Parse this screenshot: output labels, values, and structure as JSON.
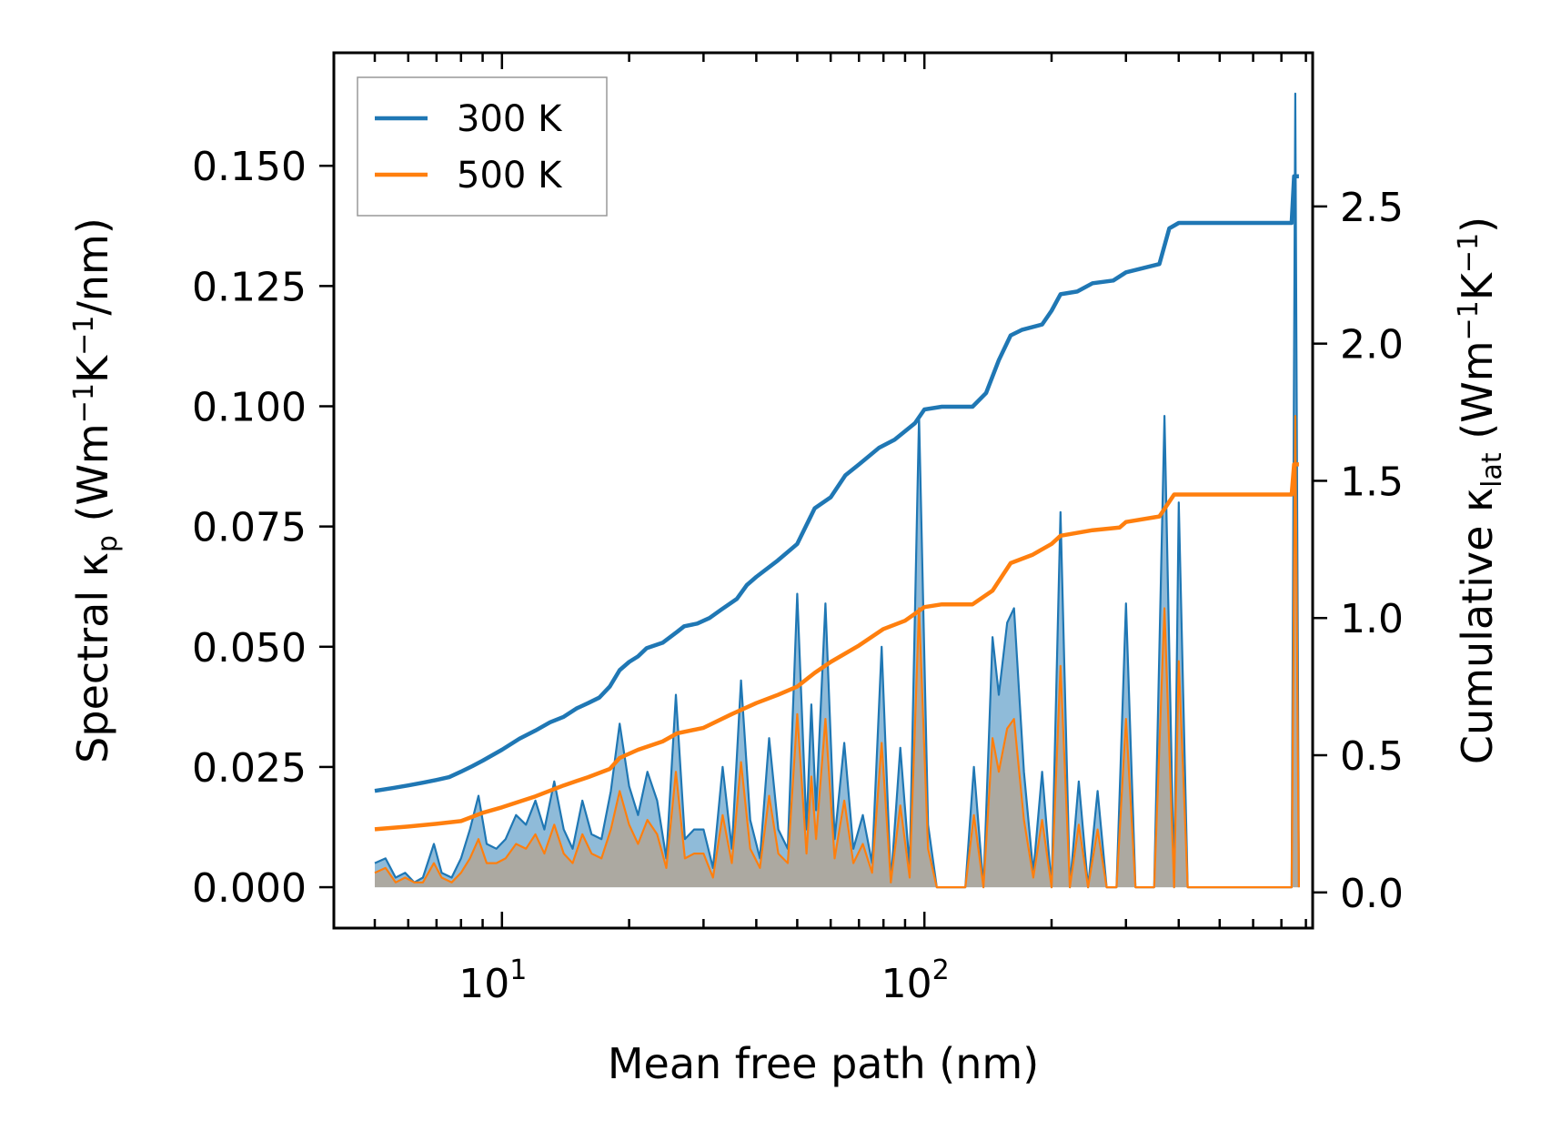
{
  "chart_data": {
    "type": "line",
    "xscale": "log",
    "xlabel": "Mean free path (nm)",
    "xlim": [
      4.0,
      830
    ],
    "xticks": [
      {
        "value": 10,
        "base": "10",
        "exp": "1"
      },
      {
        "value": 100,
        "base": "10",
        "exp": "2"
      }
    ],
    "y_left": {
      "label_parts": [
        "Spectral κ",
        "p",
        " (Wm",
        "−1",
        "K",
        "−1",
        "/nm)"
      ],
      "ylim": [
        -0.0085,
        0.1735
      ],
      "ticks": [
        {
          "value": 0.0,
          "label": "0.000"
        },
        {
          "value": 0.025,
          "label": "0.025"
        },
        {
          "value": 0.05,
          "label": "0.050"
        },
        {
          "value": 0.075,
          "label": "0.075"
        },
        {
          "value": 0.1,
          "label": "0.100"
        },
        {
          "value": 0.125,
          "label": "0.125"
        },
        {
          "value": 0.15,
          "label": "0.150"
        }
      ]
    },
    "y_right": {
      "label_parts": [
        "Cumulative κ",
        "lat",
        " (Wm",
        "−1",
        "K",
        "−1",
        ")"
      ],
      "ylim": [
        -0.13,
        3.06
      ],
      "ticks": [
        {
          "value": 0.0,
          "label": "0.0"
        },
        {
          "value": 0.5,
          "label": "0.5"
        },
        {
          "value": 1.0,
          "label": "1.0"
        },
        {
          "value": 1.5,
          "label": "1.5"
        },
        {
          "value": 2.0,
          "label": "2.0"
        },
        {
          "value": 2.5,
          "label": "2.5"
        }
      ]
    },
    "legend": {
      "placement": "top-left"
    },
    "series": [
      {
        "name": "300 K",
        "color": "#1f77b4",
        "fill_color": "#1f77b4",
        "spectral": [
          [
            5.0,
            0.005
          ],
          [
            5.3,
            0.006
          ],
          [
            5.6,
            0.002
          ],
          [
            5.9,
            0.003
          ],
          [
            6.2,
            0.001
          ],
          [
            6.5,
            0.002
          ],
          [
            6.9,
            0.009
          ],
          [
            7.2,
            0.003
          ],
          [
            7.6,
            0.002
          ],
          [
            8.0,
            0.006
          ],
          [
            8.4,
            0.012
          ],
          [
            8.8,
            0.019
          ],
          [
            9.2,
            0.009
          ],
          [
            9.7,
            0.008
          ],
          [
            10.2,
            0.01
          ],
          [
            10.8,
            0.015
          ],
          [
            11.4,
            0.013
          ],
          [
            12.0,
            0.018
          ],
          [
            12.6,
            0.012
          ],
          [
            13.3,
            0.022
          ],
          [
            14.0,
            0.012
          ],
          [
            14.7,
            0.008
          ],
          [
            15.5,
            0.018
          ],
          [
            16.3,
            0.011
          ],
          [
            17.2,
            0.01
          ],
          [
            18.1,
            0.02
          ],
          [
            19.0,
            0.034
          ],
          [
            20.0,
            0.021
          ],
          [
            21.0,
            0.015
          ],
          [
            22.1,
            0.024
          ],
          [
            23.3,
            0.018
          ],
          [
            24.5,
            0.006
          ],
          [
            25.8,
            0.04
          ],
          [
            27.1,
            0.01
          ],
          [
            28.5,
            0.012
          ],
          [
            30.0,
            0.012
          ],
          [
            31.6,
            0.004
          ],
          [
            33.3,
            0.025
          ],
          [
            35.0,
            0.008
          ],
          [
            36.8,
            0.043
          ],
          [
            38.7,
            0.014
          ],
          [
            40.8,
            0.006
          ],
          [
            42.9,
            0.031
          ],
          [
            45.1,
            0.012
          ],
          [
            47.5,
            0.008
          ],
          [
            50.0,
            0.061
          ],
          [
            52.6,
            0.012
          ],
          [
            54.0,
            0.038
          ],
          [
            55.4,
            0.016
          ],
          [
            58.3,
            0.059
          ],
          [
            61.3,
            0.01
          ],
          [
            64.6,
            0.03
          ],
          [
            67.9,
            0.008
          ],
          [
            71.5,
            0.015
          ],
          [
            75.2,
            0.005
          ],
          [
            79.2,
            0.05
          ],
          [
            83.3,
            0.001
          ],
          [
            87.7,
            0.029
          ],
          [
            92.3,
            0.004
          ],
          [
            97.1,
            0.098
          ],
          [
            102,
            0.013
          ],
          [
            107,
            0.0
          ],
          [
            113,
            0.0
          ],
          [
            119,
            0.0
          ],
          [
            125,
            0.0
          ],
          [
            131,
            0.025
          ],
          [
            138,
            0.0
          ],
          [
            145,
            0.052
          ],
          [
            150,
            0.04
          ],
          [
            157,
            0.055
          ],
          [
            163,
            0.058
          ],
          [
            172,
            0.024
          ],
          [
            181,
            0.003
          ],
          [
            190,
            0.024
          ],
          [
            200,
            0.0
          ],
          [
            210,
            0.078
          ],
          [
            221,
            0.0
          ],
          [
            232,
            0.022
          ],
          [
            244,
            0.0
          ],
          [
            257,
            0.02
          ],
          [
            270,
            0.0
          ],
          [
            285,
            0.0
          ],
          [
            300,
            0.059
          ],
          [
            316,
            0.0
          ],
          [
            330,
            0.0
          ],
          [
            350,
            0.0
          ],
          [
            370,
            0.098
          ],
          [
            390,
            0.0
          ],
          [
            400,
            0.08
          ],
          [
            420,
            0.0
          ],
          [
            500,
            0.0
          ],
          [
            600,
            0.0
          ],
          [
            740,
            0.0
          ],
          [
            755,
            0.165
          ],
          [
            770,
            0.0
          ]
        ],
        "cumulative": [
          [
            5.0,
            0.37
          ],
          [
            5.5,
            0.38
          ],
          [
            6.0,
            0.39
          ],
          [
            6.5,
            0.4
          ],
          [
            7.0,
            0.41
          ],
          [
            7.5,
            0.42
          ],
          [
            8.0,
            0.44
          ],
          [
            8.5,
            0.46
          ],
          [
            9.0,
            0.48
          ],
          [
            10.0,
            0.52
          ],
          [
            11.0,
            0.56
          ],
          [
            12.0,
            0.59
          ],
          [
            13.0,
            0.62
          ],
          [
            14.0,
            0.64
          ],
          [
            15.0,
            0.67
          ],
          [
            16.0,
            0.69
          ],
          [
            17.0,
            0.71
          ],
          [
            18.0,
            0.75
          ],
          [
            19.0,
            0.81
          ],
          [
            20.0,
            0.84
          ],
          [
            21.0,
            0.86
          ],
          [
            22.0,
            0.89
          ],
          [
            24.0,
            0.91
          ],
          [
            26.0,
            0.95
          ],
          [
            27.0,
            0.97
          ],
          [
            29.0,
            0.98
          ],
          [
            31.0,
            1.0
          ],
          [
            33.0,
            1.03
          ],
          [
            36.0,
            1.07
          ],
          [
            38.0,
            1.12
          ],
          [
            40.0,
            1.15
          ],
          [
            45.0,
            1.21
          ],
          [
            50.0,
            1.27
          ],
          [
            55.0,
            1.4
          ],
          [
            60.0,
            1.44
          ],
          [
            65.0,
            1.52
          ],
          [
            70.0,
            1.56
          ],
          [
            78.0,
            1.62
          ],
          [
            85.0,
            1.65
          ],
          [
            95.0,
            1.71
          ],
          [
            100.0,
            1.76
          ],
          [
            110.0,
            1.77
          ],
          [
            130.0,
            1.77
          ],
          [
            140.0,
            1.82
          ],
          [
            150.0,
            1.94
          ],
          [
            160.0,
            2.03
          ],
          [
            170.0,
            2.05
          ],
          [
            190.0,
            2.07
          ],
          [
            200.0,
            2.12
          ],
          [
            210.0,
            2.18
          ],
          [
            230.0,
            2.19
          ],
          [
            250.0,
            2.22
          ],
          [
            280.0,
            2.23
          ],
          [
            300.0,
            2.26
          ],
          [
            360.0,
            2.29
          ],
          [
            380.0,
            2.42
          ],
          [
            400.0,
            2.44
          ],
          [
            500.0,
            2.44
          ],
          [
            600.0,
            2.44
          ],
          [
            740.0,
            2.44
          ],
          [
            750.0,
            2.61
          ],
          [
            770.0,
            2.61
          ]
        ]
      },
      {
        "name": "500 K",
        "color": "#ff7f0e",
        "fill_color": "#c59a73",
        "spectral": [
          [
            5.0,
            0.003
          ],
          [
            5.3,
            0.004
          ],
          [
            5.6,
            0.001
          ],
          [
            5.9,
            0.002
          ],
          [
            6.2,
            0.001
          ],
          [
            6.5,
            0.001
          ],
          [
            6.9,
            0.005
          ],
          [
            7.2,
            0.002
          ],
          [
            7.6,
            0.001
          ],
          [
            8.0,
            0.003
          ],
          [
            8.4,
            0.006
          ],
          [
            8.8,
            0.01
          ],
          [
            9.2,
            0.005
          ],
          [
            9.7,
            0.005
          ],
          [
            10.2,
            0.006
          ],
          [
            10.8,
            0.009
          ],
          [
            11.4,
            0.008
          ],
          [
            12.0,
            0.011
          ],
          [
            12.6,
            0.007
          ],
          [
            13.3,
            0.013
          ],
          [
            14.0,
            0.007
          ],
          [
            14.7,
            0.005
          ],
          [
            15.5,
            0.011
          ],
          [
            16.3,
            0.007
          ],
          [
            17.2,
            0.006
          ],
          [
            18.1,
            0.012
          ],
          [
            19.0,
            0.02
          ],
          [
            20.0,
            0.013
          ],
          [
            21.0,
            0.009
          ],
          [
            22.1,
            0.014
          ],
          [
            23.3,
            0.011
          ],
          [
            24.5,
            0.004
          ],
          [
            25.8,
            0.024
          ],
          [
            27.1,
            0.006
          ],
          [
            28.5,
            0.007
          ],
          [
            30.0,
            0.007
          ],
          [
            31.6,
            0.002
          ],
          [
            33.3,
            0.015
          ],
          [
            35.0,
            0.005
          ],
          [
            36.8,
            0.026
          ],
          [
            38.7,
            0.008
          ],
          [
            40.8,
            0.004
          ],
          [
            42.9,
            0.019
          ],
          [
            45.1,
            0.007
          ],
          [
            47.5,
            0.005
          ],
          [
            50.0,
            0.036
          ],
          [
            52.6,
            0.007
          ],
          [
            54.0,
            0.023
          ],
          [
            55.4,
            0.01
          ],
          [
            58.3,
            0.035
          ],
          [
            61.3,
            0.006
          ],
          [
            64.6,
            0.018
          ],
          [
            67.9,
            0.005
          ],
          [
            71.5,
            0.009
          ],
          [
            75.2,
            0.003
          ],
          [
            79.2,
            0.03
          ],
          [
            83.3,
            0.001
          ],
          [
            87.7,
            0.017
          ],
          [
            92.3,
            0.002
          ],
          [
            97.1,
            0.058
          ],
          [
            102,
            0.008
          ],
          [
            107,
            0.0
          ],
          [
            113,
            0.0
          ],
          [
            119,
            0.0
          ],
          [
            125,
            0.0
          ],
          [
            131,
            0.015
          ],
          [
            138,
            0.0
          ],
          [
            145,
            0.031
          ],
          [
            150,
            0.024
          ],
          [
            157,
            0.033
          ],
          [
            163,
            0.035
          ],
          [
            172,
            0.014
          ],
          [
            181,
            0.002
          ],
          [
            190,
            0.014
          ],
          [
            200,
            0.0
          ],
          [
            210,
            0.046
          ],
          [
            221,
            0.0
          ],
          [
            232,
            0.013
          ],
          [
            244,
            0.0
          ],
          [
            257,
            0.012
          ],
          [
            270,
            0.0
          ],
          [
            285,
            0.0
          ],
          [
            300,
            0.035
          ],
          [
            316,
            0.0
          ],
          [
            330,
            0.0
          ],
          [
            350,
            0.0
          ],
          [
            370,
            0.058
          ],
          [
            390,
            0.0
          ],
          [
            400,
            0.047
          ],
          [
            420,
            0.0
          ],
          [
            500,
            0.0
          ],
          [
            600,
            0.0
          ],
          [
            740,
            0.0
          ],
          [
            755,
            0.098
          ],
          [
            770,
            0.0
          ]
        ],
        "cumulative": [
          [
            5.0,
            0.23
          ],
          [
            6.0,
            0.24
          ],
          [
            7.0,
            0.25
          ],
          [
            8.0,
            0.26
          ],
          [
            9.0,
            0.29
          ],
          [
            10.0,
            0.31
          ],
          [
            12.0,
            0.35
          ],
          [
            14.0,
            0.39
          ],
          [
            16.0,
            0.42
          ],
          [
            18.0,
            0.45
          ],
          [
            19.0,
            0.49
          ],
          [
            21.0,
            0.52
          ],
          [
            24.0,
            0.55
          ],
          [
            26.0,
            0.58
          ],
          [
            30.0,
            0.6
          ],
          [
            35.0,
            0.65
          ],
          [
            40.0,
            0.69
          ],
          [
            45.0,
            0.72
          ],
          [
            50.0,
            0.75
          ],
          [
            55.0,
            0.8
          ],
          [
            60.0,
            0.84
          ],
          [
            70.0,
            0.9
          ],
          [
            80.0,
            0.96
          ],
          [
            90.0,
            0.99
          ],
          [
            100.0,
            1.04
          ],
          [
            110.0,
            1.05
          ],
          [
            130.0,
            1.05
          ],
          [
            145.0,
            1.1
          ],
          [
            160.0,
            1.2
          ],
          [
            180.0,
            1.23
          ],
          [
            200.0,
            1.27
          ],
          [
            210.0,
            1.3
          ],
          [
            250.0,
            1.32
          ],
          [
            290.0,
            1.33
          ],
          [
            300.0,
            1.35
          ],
          [
            360.0,
            1.37
          ],
          [
            390.0,
            1.45
          ],
          [
            500.0,
            1.45
          ],
          [
            740.0,
            1.45
          ],
          [
            750.0,
            1.56
          ],
          [
            770.0,
            1.56
          ]
        ]
      }
    ]
  }
}
